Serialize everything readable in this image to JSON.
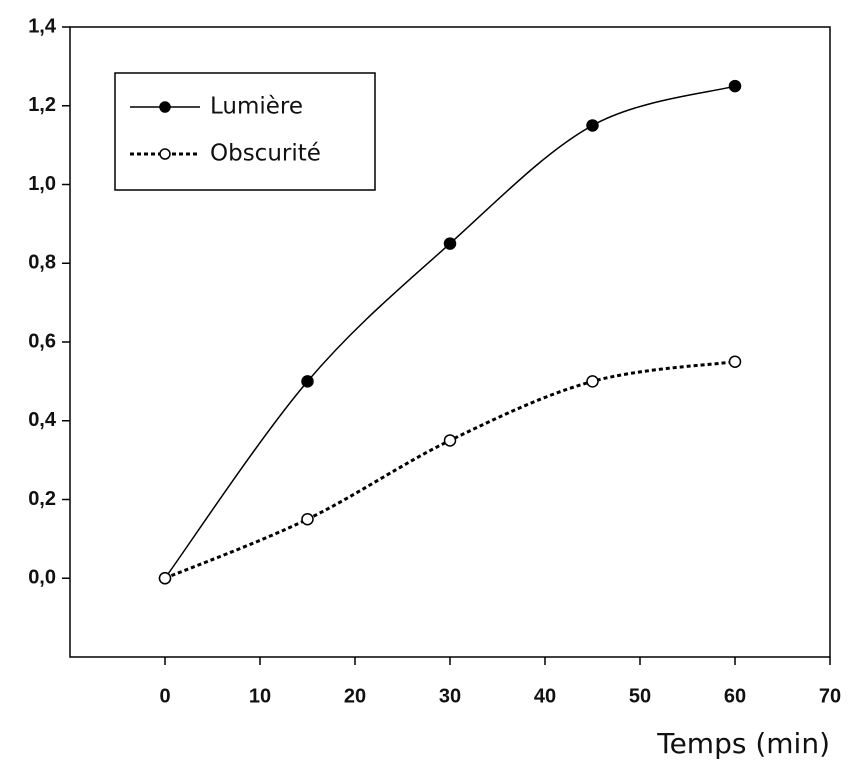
{
  "chart_data": {
    "type": "line",
    "x": [
      0,
      15,
      30,
      45,
      60
    ],
    "series": [
      {
        "name": "Lumière",
        "color": "#000000",
        "linestyle": "solid",
        "marker": "filled",
        "values": [
          0,
          0.5,
          0.85,
          1.15,
          1.25
        ]
      },
      {
        "name": "Obscurité",
        "color": "#000000",
        "linestyle": "dotted",
        "marker": "open",
        "values": [
          0,
          0.15,
          0.35,
          0.5,
          0.55
        ]
      }
    ],
    "x_label": "Temps (min)",
    "xlim": [
      -10,
      70
    ],
    "xticks": [
      0,
      10,
      20,
      30,
      40,
      50,
      60,
      70
    ],
    "ylim": [
      -0.2,
      1.4
    ],
    "yticks": [
      {
        "value": 0,
        "label": "0,0"
      },
      {
        "value": 0.2,
        "label": "0,2"
      },
      {
        "value": 0.4,
        "label": "0,4"
      },
      {
        "value": 0.6,
        "label": "0,6"
      },
      {
        "value": 0.8,
        "label": "0,8"
      },
      {
        "value": 1.0,
        "label": "1,0"
      },
      {
        "value": 1.2,
        "label": "1,2"
      },
      {
        "value": 1.4,
        "label": "1,4"
      }
    ],
    "legend": "upper left",
    "grid": false
  }
}
